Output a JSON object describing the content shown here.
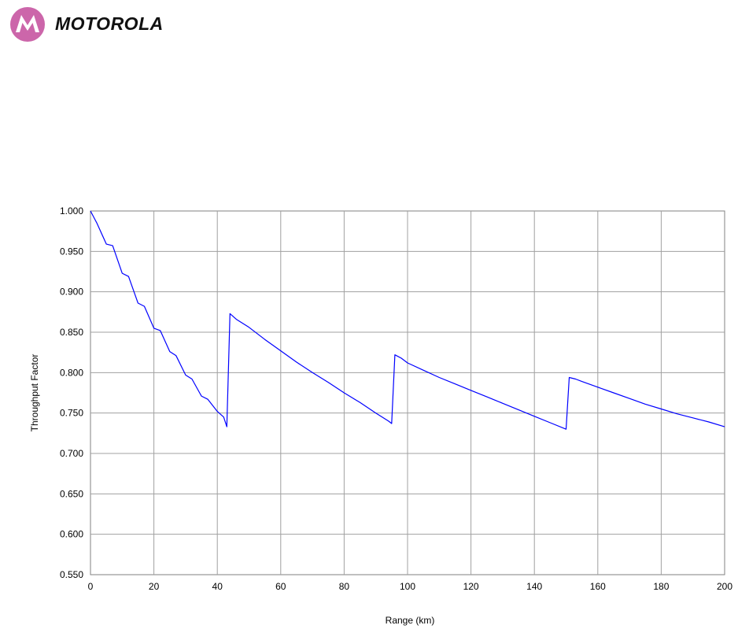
{
  "brand": {
    "name": "MOTOROLA",
    "logo_icon": "motorola-batwing-icon",
    "logo_color": "#cc66aa"
  },
  "chart_data": {
    "type": "line",
    "title": "",
    "xlabel": "Range (km)",
    "ylabel": "Throughput Factor",
    "xlim": [
      0,
      200
    ],
    "ylim": [
      0.55,
      1.0
    ],
    "grid": true,
    "x_ticks": [
      0,
      20,
      40,
      60,
      80,
      100,
      120,
      140,
      160,
      180,
      200
    ],
    "x_tick_labels": [
      "0",
      "20",
      "40",
      "60",
      "80",
      "100",
      "120",
      "140",
      "160",
      "180",
      "200"
    ],
    "y_ticks": [
      0.55,
      0.6,
      0.65,
      0.7,
      0.75,
      0.8,
      0.85,
      0.9,
      0.95,
      1.0
    ],
    "y_tick_labels": [
      "0.550",
      "0.600",
      "0.650",
      "0.700",
      "0.750",
      "0.800",
      "0.850",
      "0.900",
      "0.950",
      "1.000"
    ],
    "series": [
      {
        "color": "#0000ff",
        "x": [
          0,
          2,
          5,
          7,
          10,
          12,
          15,
          17,
          20,
          22,
          25,
          27,
          30,
          32,
          35,
          37,
          40,
          42,
          43,
          44,
          46,
          50,
          55,
          60,
          65,
          70,
          75,
          80,
          85,
          90,
          94,
          95,
          96,
          98,
          100,
          105,
          110,
          115,
          120,
          125,
          130,
          135,
          140,
          145,
          150,
          151,
          153,
          155,
          160,
          165,
          170,
          175,
          180,
          185,
          190,
          195,
          200
        ],
        "y": [
          1.0,
          0.985,
          0.959,
          0.957,
          0.923,
          0.919,
          0.886,
          0.882,
          0.855,
          0.852,
          0.826,
          0.821,
          0.797,
          0.792,
          0.771,
          0.767,
          0.752,
          0.745,
          0.733,
          0.873,
          0.866,
          0.856,
          0.841,
          0.827,
          0.813,
          0.8,
          0.788,
          0.775,
          0.763,
          0.75,
          0.74,
          0.737,
          0.822,
          0.818,
          0.812,
          0.803,
          0.794,
          0.786,
          0.778,
          0.77,
          0.762,
          0.754,
          0.746,
          0.738,
          0.73,
          0.794,
          0.792,
          0.789,
          0.782,
          0.775,
          0.768,
          0.761,
          0.755,
          0.749,
          0.744,
          0.739,
          0.733
        ]
      }
    ]
  }
}
